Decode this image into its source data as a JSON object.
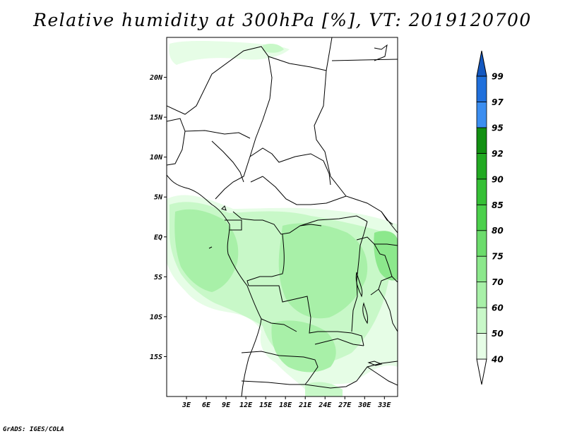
{
  "title": "Relative humidity at 300hPa [%], VT: 2019120700",
  "credit": "GrADS: IGES/COLA",
  "variable": "Relative humidity",
  "level": "300hPa",
  "units": "%",
  "valid_time": "2019120700",
  "map": {
    "lon_range": [
      0,
      35
    ],
    "lat_range": [
      -20,
      25
    ],
    "lat_ticks": [
      {
        "value": 20,
        "label": "20N"
      },
      {
        "value": 15,
        "label": "15N"
      },
      {
        "value": 10,
        "label": "10N"
      },
      {
        "value": 5,
        "label": "5N"
      },
      {
        "value": 0,
        "label": "EQ"
      },
      {
        "value": -5,
        "label": "5S"
      },
      {
        "value": -10,
        "label": "10S"
      },
      {
        "value": -15,
        "label": "15S"
      }
    ],
    "lon_ticks": [
      {
        "value": 3,
        "label": "3E"
      },
      {
        "value": 6,
        "label": "6E"
      },
      {
        "value": 9,
        "label": "9E"
      },
      {
        "value": 12,
        "label": "12E"
      },
      {
        "value": 15,
        "label": "15E"
      },
      {
        "value": 18,
        "label": "18E"
      },
      {
        "value": 21,
        "label": "21E"
      },
      {
        "value": 24,
        "label": "24E"
      },
      {
        "value": 27,
        "label": "27E"
      },
      {
        "value": 30,
        "label": "30E"
      },
      {
        "value": 33,
        "label": "33E"
      }
    ]
  },
  "colorbar": {
    "levels": [
      {
        "label": "40",
        "color": "#e6fde6"
      },
      {
        "label": "50",
        "color": "#c8f8c8"
      },
      {
        "label": "60",
        "color": "#a8f0a8"
      },
      {
        "label": "70",
        "color": "#8ce88c"
      },
      {
        "label": "75",
        "color": "#6cdc6c"
      },
      {
        "label": "80",
        "color": "#4cd04c"
      },
      {
        "label": "85",
        "color": "#36c036"
      },
      {
        "label": "90",
        "color": "#22aa22"
      },
      {
        "label": "92",
        "color": "#129012"
      },
      {
        "label": "95",
        "color": "#3c8ef0"
      },
      {
        "label": "97",
        "color": "#2070dc"
      },
      {
        "label": "99",
        "color": "#1458c0"
      }
    ],
    "below_color": "#ffffff",
    "above_color": "#1458c0"
  }
}
